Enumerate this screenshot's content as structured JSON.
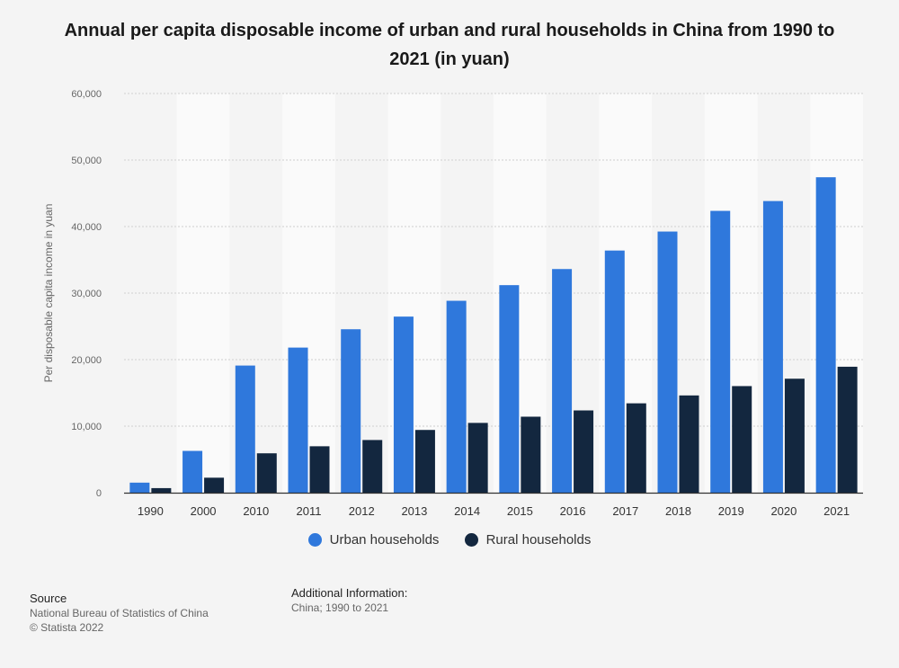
{
  "title": "Annual per capita disposable income of urban and rural households in China from 1990 to 2021 (in yuan)",
  "colors": {
    "urban": "#2f78dc",
    "rural": "#13273f",
    "grid": "#cfcfcf",
    "band": "#fafafa",
    "axis": "#333333"
  },
  "chart_data": {
    "type": "bar",
    "title": "Annual per capita disposable income of urban and rural households in China from 1990 to 2021 (in yuan)",
    "xlabel": "",
    "ylabel": "Per disposable capita income in yuan",
    "ylim": [
      0,
      60000
    ],
    "yticks": [
      0,
      10000,
      20000,
      30000,
      40000,
      50000,
      60000
    ],
    "ytick_labels": [
      "0",
      "10,000",
      "20,000",
      "30,000",
      "40,000",
      "50,000",
      "60,000"
    ],
    "categories": [
      "1990",
      "2000",
      "2010",
      "2011",
      "2012",
      "2013",
      "2014",
      "2015",
      "2016",
      "2017",
      "2018",
      "2019",
      "2020",
      "2021"
    ],
    "series": [
      {
        "name": "Urban households",
        "values": [
          1510,
          6280,
          19109,
          21810,
          24565,
          26467,
          28844,
          31195,
          33616,
          36396,
          39251,
          42359,
          43834,
          47412
        ]
      },
      {
        "name": "Rural households",
        "values": [
          686,
          2253,
          5919,
          6977,
          7917,
          9430,
          10489,
          11422,
          12363,
          13432,
          14617,
          16021,
          17131,
          18931
        ]
      }
    ],
    "grid": true,
    "legend_position": "bottom"
  },
  "legend": {
    "urban": "Urban households",
    "rural": "Rural households"
  },
  "source": {
    "heading": "Source",
    "line1": "National Bureau of Statistics of China",
    "line2": "© Statista 2022"
  },
  "additional_info": {
    "heading": "Additional Information:",
    "text": "China; 1990 to 2021"
  }
}
